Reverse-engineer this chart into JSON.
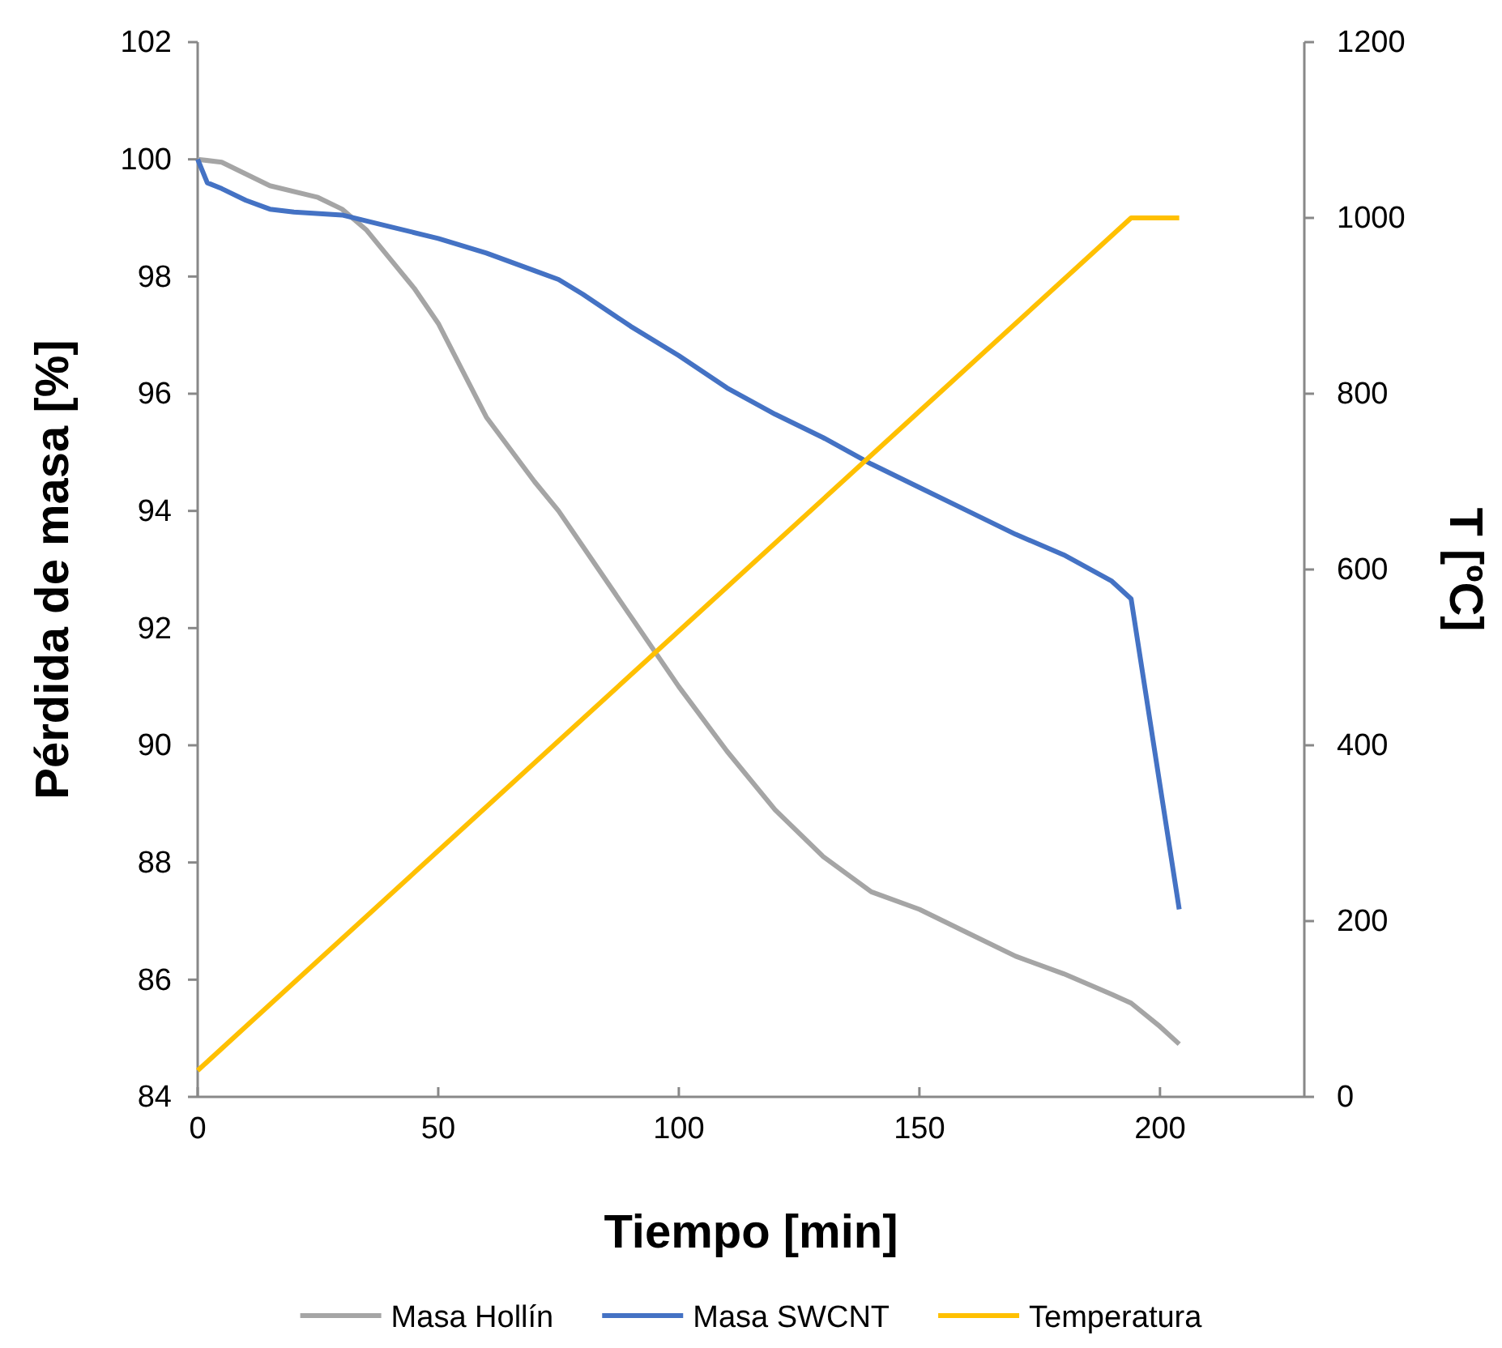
{
  "chart_data": {
    "type": "line",
    "xlabel": "Tiempo [min]",
    "ylabel": "Pérdida de masa [%]",
    "y2label": "T [ºC]",
    "xlim": [
      0,
      230
    ],
    "xticks": [
      0,
      50,
      100,
      150,
      200
    ],
    "ylim": [
      84,
      102
    ],
    "yticks": [
      84,
      86,
      88,
      90,
      92,
      94,
      96,
      98,
      100,
      102
    ],
    "y2lim": [
      0,
      1200
    ],
    "y2ticks": [
      0,
      200,
      400,
      600,
      800,
      1000,
      1200
    ],
    "legend": "bottom",
    "grid": false,
    "marker": "none",
    "line_style": "solid",
    "series": [
      {
        "name": "Masa Hollín",
        "color": "#a5a5a5",
        "x": [
          0,
          5,
          10,
          15,
          25,
          30,
          35,
          40,
          45,
          50,
          55,
          60,
          70,
          75,
          80,
          90,
          100,
          110,
          120,
          130,
          140,
          150,
          160,
          170,
          180,
          190,
          194,
          200,
          204
        ],
        "values": [
          100,
          99.95,
          99.75,
          99.55,
          99.35,
          99.15,
          98.8,
          98.3,
          97.8,
          97.2,
          96.4,
          95.6,
          94.5,
          94.0,
          93.4,
          92.2,
          91.0,
          89.9,
          88.9,
          88.1,
          87.5,
          87.2,
          86.8,
          86.4,
          86.1,
          85.75,
          85.6,
          85.2,
          84.9
        ]
      },
      {
        "name": "Masa SWCNT",
        "color": "#4472c4",
        "x": [
          0,
          2,
          5,
          10,
          15,
          20,
          30,
          40,
          50,
          60,
          70,
          75,
          80,
          90,
          100,
          110,
          120,
          130,
          140,
          150,
          160,
          170,
          180,
          190,
          194,
          204
        ],
        "values": [
          100,
          99.6,
          99.5,
          99.3,
          99.15,
          99.1,
          99.05,
          98.85,
          98.65,
          98.4,
          98.1,
          97.95,
          97.7,
          97.15,
          96.65,
          96.1,
          95.65,
          95.25,
          94.8,
          94.4,
          94.0,
          93.6,
          93.25,
          92.8,
          92.5,
          87.2
        ]
      },
      {
        "name": "Temperatura",
        "color": "#ffc000",
        "axis": "y2",
        "x": [
          0,
          194,
          204
        ],
        "values": [
          30,
          1000,
          1000
        ]
      }
    ]
  }
}
